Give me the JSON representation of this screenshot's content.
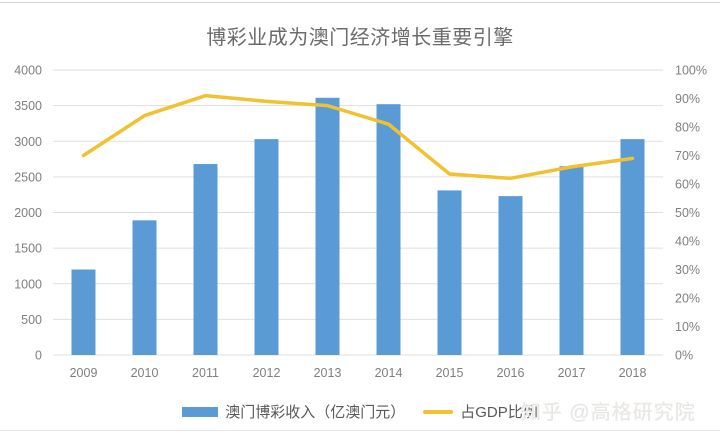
{
  "page": {
    "watermark": "知乎 @高格研究院"
  },
  "legend": {
    "bar_label": "澳门博彩收入（亿澳门元）",
    "line_label": "占GDP比例"
  },
  "colors": {
    "bar": "#5b9bd5",
    "line": "#f2c12f",
    "grid": "#dfdfdf",
    "axis_text": "#7f7f7f",
    "title_text": "#6b6b6b",
    "watermark_text": "#e9e7e4"
  },
  "chart_data": {
    "type": "bar",
    "subtype": "combo-bar-line",
    "title": "博彩业成为澳门经济增长重要引擎",
    "categories": [
      "2009",
      "2010",
      "2011",
      "2012",
      "2013",
      "2014",
      "2015",
      "2016",
      "2017",
      "2018"
    ],
    "series": [
      {
        "name": "澳门博彩收入（亿澳门元）",
        "type": "bar",
        "axis": "left",
        "values": [
          1200,
          1890,
          2680,
          3030,
          3610,
          3520,
          2310,
          2230,
          2650,
          3030
        ]
      },
      {
        "name": "占GDP比例",
        "type": "line",
        "axis": "right",
        "values": [
          70,
          84,
          91,
          89,
          87.5,
          81,
          63.5,
          62,
          66,
          69
        ]
      }
    ],
    "left_axis": {
      "min": 0,
      "max": 4000,
      "ticks": [
        "4000",
        "3500",
        "3000",
        "2500",
        "2000",
        "1500",
        "1000",
        "500",
        "0"
      ]
    },
    "right_axis": {
      "min": 0,
      "max": 100,
      "ticks": [
        "100%",
        "90%",
        "80%",
        "70%",
        "60%",
        "50%",
        "40%",
        "30%",
        "20%",
        "10%",
        "0%"
      ]
    },
    "grid": true,
    "legend_position": "bottom"
  }
}
